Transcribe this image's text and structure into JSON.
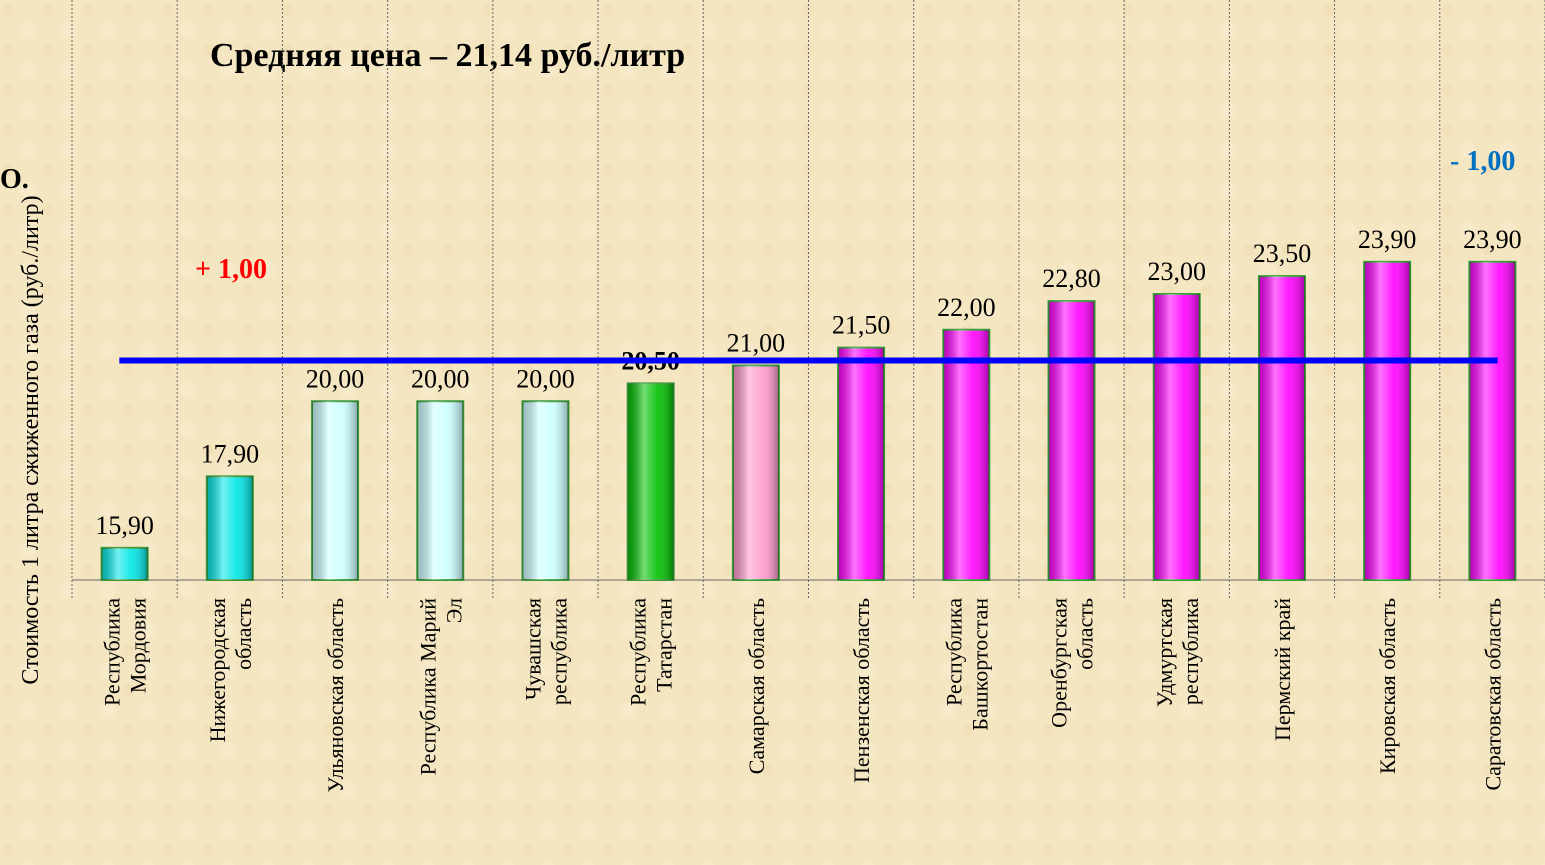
{
  "chart_data": {
    "type": "bar",
    "title": "Средняя цена – 21,14 руб./литр",
    "y_axis_label": "Стоимость 1  литра сжиженного газа  (руб./литр)",
    "categories": [
      "Республика\nМордовия",
      "Нижегородская\nобласть",
      "Ульяновская область",
      "Республика Марий\nЭл",
      "Чувашская\nреспублика",
      "Республика\nТатарстан",
      "Самарская область",
      "Пензенская область",
      "Республика\nБашкортостан",
      "Оренбургская\nобласть",
      "Удмуртская\nреспублика",
      "Пермский край",
      "Кировская область",
      "Саратовская  область"
    ],
    "values": [
      15.9,
      17.9,
      20,
      20,
      20,
      20.5,
      21,
      21.5,
      22,
      22.8,
      23,
      23.5,
      23.9,
      23.9
    ],
    "value_labels": [
      "15,90",
      "17,90",
      "20,00",
      "20,00",
      "20,00",
      "20,50",
      "21,00",
      "21,50",
      "22,00",
      "22,80",
      "23,00",
      "23,50",
      "23,90",
      "23,90"
    ],
    "colors": [
      "#00e6e6",
      "#00e6e6",
      "#ccffff",
      "#ccffff",
      "#ccffff",
      "#00c000",
      "#ff99cc",
      "#ff00ff",
      "#ff00ff",
      "#ff00ff",
      "#ff00ff",
      "#ff00ff",
      "#ff00ff",
      "#ff00ff"
    ],
    "bold_label_index": 5,
    "average": 21.14,
    "average_color": "#0000ff",
    "ylim": [
      15,
      31
    ],
    "annotations": [
      {
        "text": "+ 1,00",
        "category_index": 1,
        "color": "#ff0000"
      },
      {
        "text": "- 1,00",
        "category_index": 13,
        "color": "#0070c0"
      },
      {
        "text": "О.",
        "category_index": 0,
        "color": "#000000"
      }
    ]
  }
}
